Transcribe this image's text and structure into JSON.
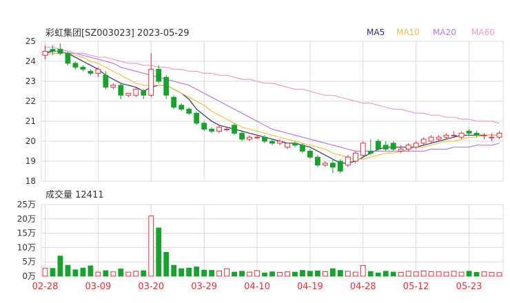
{
  "title": "彩虹集团[SZ003023] 2023-05-29",
  "legend": [
    {
      "label": "MA5",
      "color": "#2b2f6b"
    },
    {
      "label": "MA10",
      "color": "#f3c04b"
    },
    {
      "label": "MA20",
      "color": "#b57cdb"
    },
    {
      "label": "MA60",
      "color": "#ef9ac9"
    }
  ],
  "volume_label": "成交量 12411",
  "colors": {
    "up": "#e0313a",
    "down": "#1aa02e",
    "grid": "#d9d9d9"
  },
  "price_axis": {
    "ticks": [
      "25",
      "24",
      "23",
      "22",
      "21",
      "20",
      "19",
      "18"
    ]
  },
  "volume_axis": {
    "ticks": [
      "25万",
      "20万",
      "15万",
      "10万",
      "5万",
      "0万"
    ]
  },
  "date_labels": [
    "02-28",
    "03-09",
    "03-20",
    "03-29",
    "04-10",
    "04-19",
    "04-28",
    "05-12",
    "05-23"
  ],
  "chart_data": {
    "type": "candlestick",
    "ylim": [
      18,
      25
    ],
    "volume_ylim": [
      0,
      250000
    ],
    "grid": true,
    "x": [
      "02-28",
      "03-01",
      "03-02",
      "03-03",
      "03-06",
      "03-07",
      "03-08",
      "03-09",
      "03-10",
      "03-13",
      "03-14",
      "03-15",
      "03-16",
      "03-17",
      "03-20",
      "03-21",
      "03-22",
      "03-23",
      "03-24",
      "03-27",
      "03-28",
      "03-29",
      "03-30",
      "03-31",
      "04-03",
      "04-04",
      "04-06",
      "04-07",
      "04-10",
      "04-11",
      "04-12",
      "04-13",
      "04-14",
      "04-17",
      "04-18",
      "04-19",
      "04-20",
      "04-21",
      "04-24",
      "04-25",
      "04-26",
      "04-27",
      "04-28",
      "05-04",
      "05-05",
      "05-08",
      "05-09",
      "05-10",
      "05-11",
      "05-12",
      "05-15",
      "05-16",
      "05-17",
      "05-18",
      "05-19",
      "05-22",
      "05-23",
      "05-24",
      "05-25",
      "05-26",
      "05-29"
    ],
    "open": [
      24.3,
      24.6,
      24.6,
      24.4,
      23.9,
      23.7,
      23.5,
      23.4,
      23.3,
      22.7,
      22.8,
      22.3,
      22.3,
      22.5,
      22.3,
      23.6,
      23.2,
      22.2,
      21.8,
      21.6,
      21.4,
      20.9,
      20.6,
      20.5,
      20.6,
      20.8,
      20.4,
      20.1,
      20.2,
      20.2,
      20.0,
      19.9,
      19.7,
      19.9,
      19.8,
      19.5,
      19.2,
      18.8,
      18.9,
      19.0,
      18.8,
      19.0,
      19.3,
      19.5,
      20.0,
      19.8,
      19.9,
      19.5,
      19.6,
      19.7,
      19.9,
      20.0,
      20.1,
      20.2,
      20.3,
      20.2,
      20.5,
      20.4,
      20.3,
      20.2,
      20.2
    ],
    "close": [
      24.5,
      24.5,
      24.4,
      23.9,
      23.7,
      23.6,
      23.4,
      23.6,
      22.7,
      22.8,
      22.3,
      22.4,
      22.6,
      22.3,
      23.6,
      23.0,
      22.3,
      21.7,
      21.6,
      21.4,
      20.9,
      20.6,
      20.5,
      20.7,
      20.6,
      20.4,
      20.1,
      20.2,
      20.2,
      20.0,
      19.9,
      20.0,
      19.9,
      19.8,
      19.5,
      19.2,
      18.8,
      18.9,
      18.7,
      18.5,
      19.2,
      19.4,
      19.9,
      19.4,
      19.6,
      19.6,
      19.6,
      19.6,
      19.8,
      19.9,
      20.1,
      20.2,
      20.2,
      20.3,
      20.3,
      20.4,
      20.4,
      20.3,
      20.3,
      20.2,
      20.4
    ],
    "high": [
      24.8,
      24.8,
      24.9,
      24.5,
      24.0,
      23.8,
      23.6,
      23.7,
      23.5,
      22.9,
      22.9,
      22.4,
      22.7,
      22.6,
      24.4,
      23.8,
      23.3,
      22.3,
      21.9,
      21.7,
      21.5,
      21.0,
      20.7,
      20.8,
      20.7,
      20.9,
      20.5,
      20.3,
      20.3,
      20.3,
      20.1,
      20.1,
      19.9,
      20.0,
      19.9,
      19.6,
      19.3,
      19.0,
      19.1,
      19.1,
      19.3,
      19.5,
      20.0,
      20.1,
      20.1,
      20.0,
      20.0,
      19.8,
      19.9,
      20.0,
      20.2,
      20.3,
      20.3,
      20.4,
      20.5,
      20.5,
      20.6,
      20.5,
      20.4,
      20.4,
      20.5
    ],
    "low": [
      24.1,
      24.3,
      24.3,
      23.8,
      23.6,
      23.5,
      23.3,
      23.2,
      22.6,
      22.6,
      22.1,
      22.2,
      22.2,
      22.1,
      22.2,
      22.9,
      22.1,
      21.6,
      21.5,
      21.3,
      20.8,
      20.5,
      20.4,
      20.4,
      20.5,
      20.3,
      20.0,
      20.0,
      20.1,
      19.9,
      19.8,
      19.8,
      19.6,
      19.7,
      19.4,
      19.1,
      18.7,
      18.7,
      18.4,
      18.4,
      18.7,
      18.9,
      19.2,
      19.3,
      19.5,
      19.5,
      19.5,
      19.4,
      19.5,
      19.6,
      19.8,
      19.9,
      20.0,
      20.1,
      20.2,
      20.1,
      20.3,
      20.2,
      20.1,
      20.0,
      20.1
    ],
    "volume": [
      28000,
      27000,
      70000,
      38000,
      22000,
      28000,
      36000,
      14000,
      19000,
      15000,
      25000,
      14000,
      17000,
      19000,
      210000,
      168000,
      83000,
      38000,
      26000,
      28000,
      32000,
      21000,
      20000,
      18000,
      26000,
      14000,
      17000,
      14000,
      19000,
      11000,
      15000,
      13000,
      15000,
      14000,
      20000,
      17000,
      18000,
      16000,
      26000,
      20000,
      17000,
      14000,
      37000,
      16000,
      11000,
      17000,
      14000,
      13000,
      17000,
      15000,
      18000,
      16000,
      15000,
      14000,
      17000,
      14000,
      17000,
      13000,
      15000,
      13000,
      12411
    ],
    "series": [
      {
        "name": "MA5",
        "values": [
          24.4,
          24.5,
          24.5,
          24.4,
          24.2,
          24.0,
          23.8,
          23.6,
          23.3,
          23.1,
          22.9,
          22.8,
          22.7,
          22.5,
          22.7,
          22.8,
          22.8,
          22.6,
          22.4,
          22.1,
          21.6,
          21.3,
          21.0,
          20.8,
          20.7,
          20.6,
          20.5,
          20.4,
          20.3,
          20.2,
          20.1,
          20.0,
          19.9,
          19.9,
          19.8,
          19.7,
          19.5,
          19.3,
          19.1,
          18.9,
          18.9,
          19.0,
          19.2,
          19.4,
          19.6,
          19.7,
          19.7,
          19.7,
          19.7,
          19.7,
          19.8,
          19.9,
          20.0,
          20.1,
          20.2,
          20.3,
          20.3,
          20.3,
          20.3,
          20.3,
          20.3
        ]
      },
      {
        "name": "MA10",
        "values": [
          24.3,
          24.4,
          24.4,
          24.4,
          24.3,
          24.2,
          24.0,
          23.9,
          23.7,
          23.5,
          23.3,
          23.1,
          22.9,
          22.8,
          22.8,
          22.8,
          22.8,
          22.6,
          22.4,
          22.2,
          22.0,
          21.8,
          21.5,
          21.3,
          21.1,
          20.9,
          20.7,
          20.6,
          20.5,
          20.4,
          20.3,
          20.2,
          20.1,
          20.0,
          19.9,
          19.8,
          19.7,
          19.6,
          19.4,
          19.3,
          19.2,
          19.1,
          19.1,
          19.2,
          19.3,
          19.4,
          19.4,
          19.5,
          19.6,
          19.7,
          19.7,
          19.8,
          19.9,
          20.0,
          20.0,
          20.1,
          20.2,
          20.2,
          20.3,
          20.3,
          20.3
        ]
      },
      {
        "name": "MA20",
        "values": [
          24.5,
          24.5,
          24.5,
          24.4,
          24.4,
          24.3,
          24.2,
          24.1,
          24.0,
          23.9,
          23.7,
          23.6,
          23.5,
          23.4,
          23.3,
          23.2,
          23.1,
          23.0,
          22.9,
          22.8,
          22.6,
          22.4,
          22.2,
          22.0,
          21.8,
          21.6,
          21.4,
          21.2,
          21.0,
          20.8,
          20.6,
          20.5,
          20.4,
          20.3,
          20.2,
          20.1,
          20.0,
          19.9,
          19.8,
          19.7,
          19.6,
          19.5,
          19.5,
          19.5,
          19.5,
          19.5,
          19.5,
          19.5,
          19.5,
          19.5,
          19.5,
          19.6,
          19.6,
          19.6,
          19.7,
          19.7,
          19.7,
          19.8,
          19.8,
          19.8,
          19.9
        ]
      },
      {
        "name": "MA60",
        "values": [
          24.7,
          24.7,
          24.6,
          24.5,
          24.4,
          24.4,
          24.3,
          24.2,
          24.2,
          24.1,
          24.0,
          23.9,
          23.9,
          23.8,
          23.8,
          23.7,
          23.7,
          23.6,
          23.6,
          23.5,
          23.5,
          23.4,
          23.4,
          23.3,
          23.3,
          23.2,
          23.1,
          23.1,
          23.0,
          22.9,
          22.9,
          22.8,
          22.7,
          22.6,
          22.6,
          22.5,
          22.4,
          22.3,
          22.3,
          22.2,
          22.1,
          22.0,
          21.9,
          21.9,
          21.8,
          21.7,
          21.6,
          21.6,
          21.5,
          21.4,
          21.4,
          21.3,
          21.3,
          21.2,
          21.2,
          21.1,
          21.1,
          21.0,
          21.0,
          21.0,
          20.9
        ]
      }
    ]
  }
}
